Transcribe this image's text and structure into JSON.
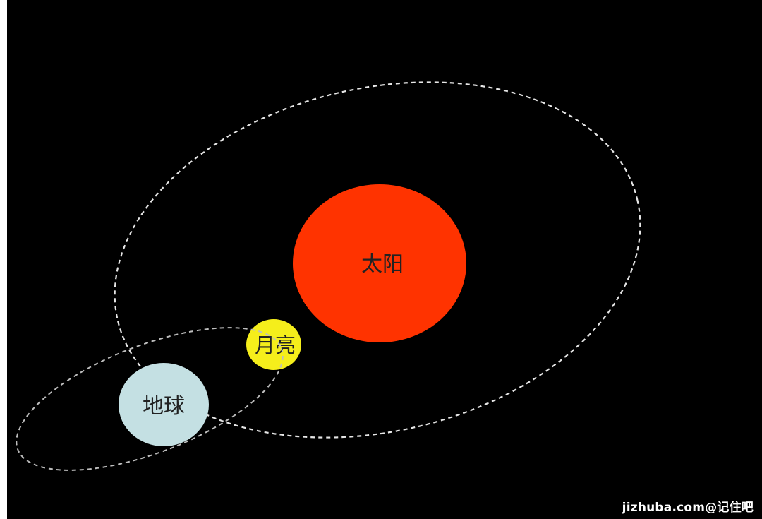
{
  "diagram": {
    "background_color": "#000000",
    "orbit_color": "#e6e6e6",
    "bodies": {
      "sun": {
        "label": "太阳",
        "color": "#ff3300"
      },
      "moon": {
        "label": "月亮",
        "color": "#f5ee1b"
      },
      "earth": {
        "label": "地球",
        "color": "#c4e0e3"
      }
    },
    "watermark": "jizhuba.com@记住吧"
  }
}
